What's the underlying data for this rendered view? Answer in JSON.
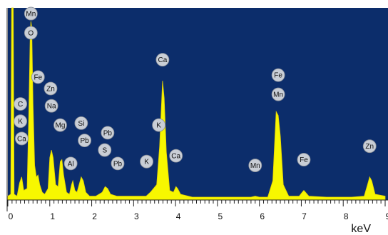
{
  "chart_data": {
    "type": "area",
    "xlabel": "keV",
    "xlim": [
      0,
      9
    ],
    "ylim": [
      0,
      100
    ],
    "grid": false,
    "colors": {
      "plot_bg": "#0c2d6b",
      "spectrum": "#f7f700",
      "spectrum_edge": "#e6d200",
      "tag_fill": "#c9ced6"
    },
    "x_ticks": [
      "0",
      "1",
      "2",
      "3",
      "4",
      "5",
      "6",
      "7",
      "8",
      "9"
    ],
    "spectrum": [
      [
        0.0,
        2
      ],
      [
        0.07,
        3
      ],
      [
        0.09,
        100
      ],
      [
        0.13,
        100
      ],
      [
        0.15,
        3
      ],
      [
        0.22,
        2
      ],
      [
        0.28,
        9
      ],
      [
        0.33,
        12
      ],
      [
        0.38,
        5
      ],
      [
        0.46,
        6
      ],
      [
        0.5,
        45
      ],
      [
        0.53,
        83
      ],
      [
        0.55,
        93
      ],
      [
        0.57,
        90
      ],
      [
        0.6,
        50
      ],
      [
        0.64,
        18
      ],
      [
        0.68,
        12
      ],
      [
        0.72,
        13
      ],
      [
        0.76,
        8
      ],
      [
        0.82,
        4
      ],
      [
        0.88,
        3
      ],
      [
        0.96,
        6
      ],
      [
        1.0,
        22
      ],
      [
        1.04,
        26
      ],
      [
        1.08,
        22
      ],
      [
        1.14,
        8
      ],
      [
        1.2,
        7
      ],
      [
        1.25,
        20
      ],
      [
        1.29,
        21
      ],
      [
        1.33,
        13
      ],
      [
        1.4,
        4
      ],
      [
        1.47,
        3
      ],
      [
        1.52,
        8
      ],
      [
        1.55,
        10
      ],
      [
        1.6,
        5
      ],
      [
        1.65,
        4
      ],
      [
        1.7,
        8
      ],
      [
        1.75,
        12
      ],
      [
        1.8,
        10
      ],
      [
        1.86,
        4
      ],
      [
        1.95,
        2
      ],
      [
        2.1,
        2
      ],
      [
        2.25,
        4
      ],
      [
        2.32,
        7
      ],
      [
        2.38,
        6
      ],
      [
        2.45,
        3
      ],
      [
        2.6,
        2
      ],
      [
        3.0,
        2
      ],
      [
        3.3,
        2
      ],
      [
        3.4,
        4
      ],
      [
        3.55,
        8
      ],
      [
        3.62,
        28
      ],
      [
        3.69,
        62
      ],
      [
        3.73,
        53
      ],
      [
        3.78,
        25
      ],
      [
        3.86,
        5
      ],
      [
        3.95,
        4
      ],
      [
        4.01,
        7
      ],
      [
        4.05,
        6
      ],
      [
        4.12,
        3
      ],
      [
        4.4,
        1.5
      ],
      [
        5.0,
        1.5
      ],
      [
        5.8,
        1.5
      ],
      [
        5.9,
        2
      ],
      [
        6.0,
        1.5
      ],
      [
        6.2,
        1.5
      ],
      [
        6.32,
        10
      ],
      [
        6.4,
        46
      ],
      [
        6.45,
        44
      ],
      [
        6.5,
        33
      ],
      [
        6.57,
        8
      ],
      [
        6.7,
        2
      ],
      [
        6.95,
        2
      ],
      [
        7.02,
        4
      ],
      [
        7.06,
        5
      ],
      [
        7.1,
        4
      ],
      [
        7.18,
        2
      ],
      [
        7.6,
        1.5
      ],
      [
        8.2,
        1.5
      ],
      [
        8.5,
        2
      ],
      [
        8.58,
        8
      ],
      [
        8.63,
        12
      ],
      [
        8.68,
        10
      ],
      [
        8.76,
        3
      ],
      [
        9.0,
        2
      ]
    ],
    "peak_tags": [
      {
        "label": "Mn",
        "x": 0.55,
        "y": 97
      },
      {
        "label": "O",
        "x": 0.55,
        "y": 87
      },
      {
        "label": "Fe",
        "x": 0.72,
        "y": 64
      },
      {
        "label": "Zn",
        "x": 1.02,
        "y": 58
      },
      {
        "label": "Na",
        "x": 1.04,
        "y": 49
      },
      {
        "label": "C",
        "x": 0.3,
        "y": 50
      },
      {
        "label": "K",
        "x": 0.3,
        "y": 41
      },
      {
        "label": "Ca",
        "x": 0.33,
        "y": 32
      },
      {
        "label": "Mg",
        "x": 1.25,
        "y": 39
      },
      {
        "label": "Si",
        "x": 1.75,
        "y": 40
      },
      {
        "label": "Pb",
        "x": 1.83,
        "y": 31
      },
      {
        "label": "Al",
        "x": 1.5,
        "y": 19
      },
      {
        "label": "Pb",
        "x": 2.38,
        "y": 35
      },
      {
        "label": "S",
        "x": 2.31,
        "y": 26
      },
      {
        "label": "Pb",
        "x": 2.62,
        "y": 19
      },
      {
        "label": "K",
        "x": 3.31,
        "y": 20
      },
      {
        "label": "K",
        "x": 3.6,
        "y": 39
      },
      {
        "label": "Ca",
        "x": 3.69,
        "y": 73
      },
      {
        "label": "Ca",
        "x": 4.01,
        "y": 23
      },
      {
        "label": "Mn",
        "x": 5.9,
        "y": 18
      },
      {
        "label": "Fe",
        "x": 6.45,
        "y": 65
      },
      {
        "label": "Mn",
        "x": 6.45,
        "y": 55
      },
      {
        "label": "Fe",
        "x": 7.06,
        "y": 21
      },
      {
        "label": "Zn",
        "x": 8.63,
        "y": 28
      }
    ]
  }
}
